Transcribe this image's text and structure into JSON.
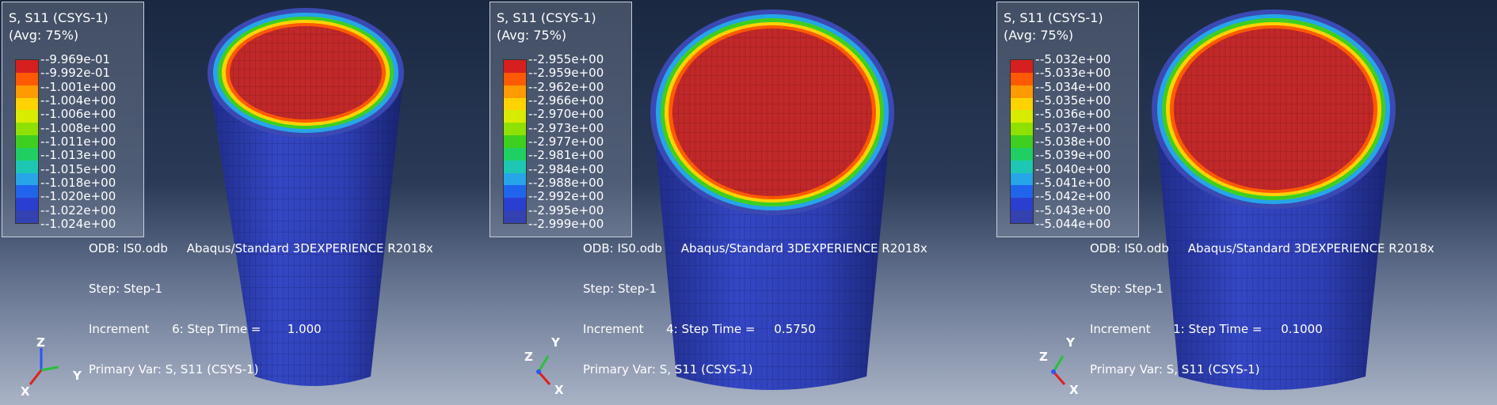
{
  "colors": {
    "contour": [
      "#d61f1f",
      "#ff5a00",
      "#ff9a00",
      "#ffd200",
      "#d8ec00",
      "#8ee100",
      "#3ecf20",
      "#1fcf63",
      "#1ec7b4",
      "#26a5e8",
      "#2164ec",
      "#2a3fd0",
      "#3441b0"
    ],
    "ring_outer": "#3b49b3",
    "inside": "#c0282a"
  },
  "panels": [
    {
      "legend": {
        "title": "S, S11 (CSYS-1)",
        "avg": "(Avg: 75%)",
        "values": [
          "-9.969e-01",
          "-9.992e-01",
          "-1.001e+00",
          "-1.004e+00",
          "-1.006e+00",
          "-1.008e+00",
          "-1.011e+00",
          "-1.013e+00",
          "-1.015e+00",
          "-1.018e+00",
          "-1.020e+00",
          "-1.022e+00",
          "-1.024e+00"
        ]
      },
      "triad": {
        "axis_top": "Z",
        "axis_right": "Y",
        "axis_bottom": "X"
      },
      "info": {
        "odb": "ODB: IS0.odb     Abaqus/Standard 3DEXPERIENCE R2018x",
        "step": "Step: Step-1",
        "increment": "Increment      6: Step Time =       1.000",
        "primary": "Primary Var: S, S11 (CSYS-1)"
      }
    },
    {
      "legend": {
        "title": "S, S11 (CSYS-1)",
        "avg": "(Avg: 75%)",
        "values": [
          "-2.955e+00",
          "-2.959e+00",
          "-2.962e+00",
          "-2.966e+00",
          "-2.970e+00",
          "-2.973e+00",
          "-2.977e+00",
          "-2.981e+00",
          "-2.984e+00",
          "-2.988e+00",
          "-2.992e+00",
          "-2.995e+00",
          "-2.999e+00"
        ]
      },
      "triad": {
        "axis_top": "Y",
        "axis_left": "Z",
        "axis_bottom": "X"
      },
      "info": {
        "odb": "ODB: IS0.odb     Abaqus/Standard 3DEXPERIENCE R2018x",
        "step": "Step: Step-1",
        "increment": "Increment      4: Step Time =     0.5750",
        "primary": "Primary Var: S, S11 (CSYS-1)"
      }
    },
    {
      "legend": {
        "title": "S, S11 (CSYS-1)",
        "avg": "(Avg: 75%)",
        "values": [
          "-5.032e+00",
          "-5.033e+00",
          "-5.034e+00",
          "-5.035e+00",
          "-5.036e+00",
          "-5.037e+00",
          "-5.038e+00",
          "-5.039e+00",
          "-5.040e+00",
          "-5.041e+00",
          "-5.042e+00",
          "-5.043e+00",
          "-5.044e+00"
        ]
      },
      "triad": {
        "axis_top": "Y",
        "axis_left": "Z",
        "axis_bottom": "X"
      },
      "info": {
        "odb": "ODB: IS0.odb     Abaqus/Standard 3DEXPERIENCE R2018x",
        "step": "Step: Step-1",
        "increment": "Increment      1: Step Time =     0.1000",
        "primary": "Primary Var: S, S11 (CSYS-1)"
      }
    }
  ]
}
